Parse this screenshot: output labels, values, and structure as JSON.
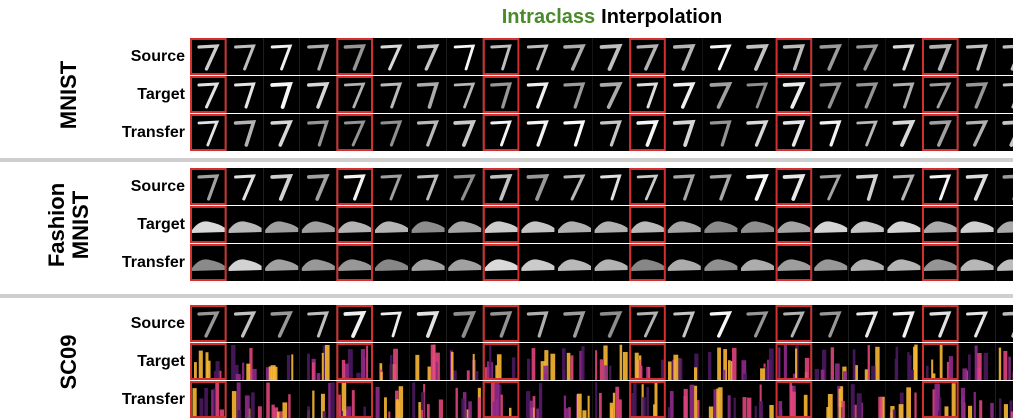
{
  "title": {
    "highlight": "Intraclass",
    "rest": "Interpolation"
  },
  "groups": [
    {
      "label": [
        "MNIST"
      ],
      "rows": [
        "Source",
        "Target",
        "Transfer"
      ]
    },
    {
      "label": [
        "Fashion",
        "MNIST"
      ],
      "rows": [
        "Source",
        "Target",
        "Transfer"
      ]
    },
    {
      "label": [
        "SC09"
      ],
      "rows": [
        "Source",
        "Target",
        "Transfer"
      ]
    }
  ]
}
